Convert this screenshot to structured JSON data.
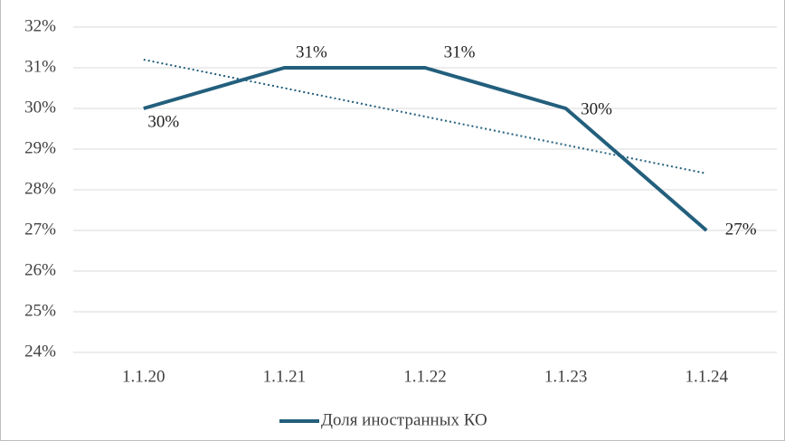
{
  "chart_data": {
    "type": "line",
    "categories": [
      "1.1.20",
      "1.1.21",
      "1.1.22",
      "1.1.23",
      "1.1.24"
    ],
    "series": [
      {
        "name": "Доля иностранных КО",
        "color": "#235f7d",
        "values": [
          30,
          31,
          31,
          30,
          27
        ],
        "value_labels": [
          "30%",
          "31%",
          "31%",
          "30%",
          "27%"
        ]
      }
    ],
    "trendline": {
      "style": "dotted",
      "color": "#235f7d",
      "values": [
        31.2,
        28.4
      ]
    },
    "ylim": [
      24,
      32
    ],
    "yticks": [
      {
        "value": 24,
        "label": "24%"
      },
      {
        "value": 25,
        "label": "25%"
      },
      {
        "value": 26,
        "label": "26%"
      },
      {
        "value": 27,
        "label": "27%"
      },
      {
        "value": 28,
        "label": "28%"
      },
      {
        "value": 29,
        "label": "29%"
      },
      {
        "value": 30,
        "label": "30%"
      },
      {
        "value": 31,
        "label": "31%"
      },
      {
        "value": 32,
        "label": "32%"
      }
    ],
    "grid": true,
    "legend": "bottom"
  }
}
